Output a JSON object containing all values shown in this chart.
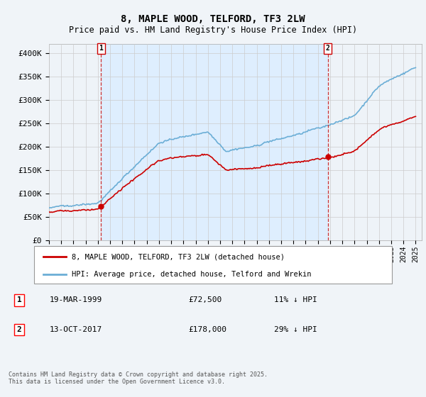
{
  "title": "8, MAPLE WOOD, TELFORD, TF3 2LW",
  "subtitle": "Price paid vs. HM Land Registry's House Price Index (HPI)",
  "ylim": [
    0,
    420000
  ],
  "yticks": [
    0,
    50000,
    100000,
    150000,
    200000,
    250000,
    300000,
    350000,
    400000
  ],
  "ytick_labels": [
    "£0",
    "£50K",
    "£100K",
    "£150K",
    "£200K",
    "£250K",
    "£300K",
    "£350K",
    "£400K"
  ],
  "line1_color": "#cc0000",
  "line2_color": "#6baed6",
  "shade_color": "#ddeeff",
  "dashed_color": "#cc3333",
  "legend_label1": "8, MAPLE WOOD, TELFORD, TF3 2LW (detached house)",
  "legend_label2": "HPI: Average price, detached house, Telford and Wrekin",
  "sale1_year": 1999.22,
  "sale1_price": 72500,
  "sale2_year": 2017.79,
  "sale2_price": 178000,
  "annotation1": [
    "1",
    "19-MAR-1999",
    "£72,500",
    "11% ↓ HPI"
  ],
  "annotation2": [
    "2",
    "13-OCT-2017",
    "£178,000",
    "29% ↓ HPI"
  ],
  "footer": "Contains HM Land Registry data © Crown copyright and database right 2025.\nThis data is licensed under the Open Government Licence v3.0.",
  "background_color": "#f0f4f8",
  "plot_background": "#eef3f8",
  "grid_color": "#cccccc",
  "xlim_start": 1995,
  "xlim_end": 2025.5
}
